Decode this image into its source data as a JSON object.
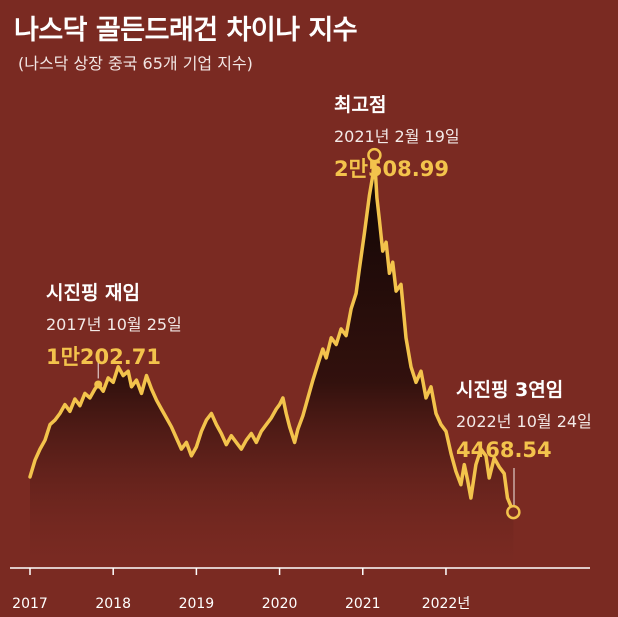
{
  "header": {
    "title": "나스닥 골든드래건 차이나 지수",
    "subtitle": "(나스닥 상장 중국 65개 기업 지수)"
  },
  "annotations": {
    "peak": {
      "heading": "최고점",
      "date": "2021년 2월 19일",
      "value": "2만508.99"
    },
    "xi_reelect": {
      "heading": "시진핑 재임",
      "date": "2017년 10월 25일",
      "value": "1만202.71"
    },
    "xi_third": {
      "heading": "시진핑 3연임",
      "date": "2022년 10월 24일",
      "value": "4468.54"
    }
  },
  "colors": {
    "background": "#7a2a22",
    "line": "#f3c34c",
    "area_top": "#120806"
  },
  "chart_data": {
    "type": "area",
    "xlabel": "",
    "ylabel": "",
    "xlim": [
      2017.0,
      2022.95
    ],
    "ylim": [
      2000,
      22000
    ],
    "x_ticks": [
      {
        "value": 2017,
        "label": "2017"
      },
      {
        "value": 2018,
        "label": "2018"
      },
      {
        "value": 2019,
        "label": "2019"
      },
      {
        "value": 2020,
        "label": "2020"
      },
      {
        "value": 2021,
        "label": "2021"
      },
      {
        "value": 2022,
        "label": "2022년"
      }
    ],
    "grid": false,
    "series": [
      {
        "points": [
          [
            2017.0,
            6050
          ],
          [
            2017.06,
            6800
          ],
          [
            2017.12,
            7300
          ],
          [
            2017.18,
            7700
          ],
          [
            2017.24,
            8400
          ],
          [
            2017.3,
            8600
          ],
          [
            2017.36,
            8900
          ],
          [
            2017.42,
            9300
          ],
          [
            2017.48,
            9000
          ],
          [
            2017.54,
            9550
          ],
          [
            2017.6,
            9250
          ],
          [
            2017.66,
            9800
          ],
          [
            2017.72,
            9600
          ],
          [
            2017.78,
            10000
          ],
          [
            2017.82,
            10202.71
          ],
          [
            2017.88,
            9900
          ],
          [
            2017.94,
            10500
          ],
          [
            2018.0,
            10300
          ],
          [
            2018.06,
            11000
          ],
          [
            2018.12,
            10600
          ],
          [
            2018.18,
            10800
          ],
          [
            2018.22,
            10100
          ],
          [
            2018.28,
            10400
          ],
          [
            2018.34,
            9800
          ],
          [
            2018.4,
            10600
          ],
          [
            2018.46,
            10000
          ],
          [
            2018.52,
            9500
          ],
          [
            2018.58,
            9100
          ],
          [
            2018.64,
            8700
          ],
          [
            2018.7,
            8300
          ],
          [
            2018.76,
            7800
          ],
          [
            2018.82,
            7300
          ],
          [
            2018.88,
            7600
          ],
          [
            2018.94,
            7000
          ],
          [
            2019.0,
            7400
          ],
          [
            2019.06,
            8100
          ],
          [
            2019.12,
            8600
          ],
          [
            2019.18,
            8900
          ],
          [
            2019.24,
            8400
          ],
          [
            2019.3,
            8000
          ],
          [
            2019.36,
            7500
          ],
          [
            2019.42,
            7900
          ],
          [
            2019.48,
            7600
          ],
          [
            2019.54,
            7300
          ],
          [
            2019.6,
            7700
          ],
          [
            2019.66,
            8000
          ],
          [
            2019.72,
            7600
          ],
          [
            2019.78,
            8100
          ],
          [
            2019.84,
            8400
          ],
          [
            2019.9,
            8700
          ],
          [
            2019.96,
            9100
          ],
          [
            2020.0,
            9300
          ],
          [
            2020.04,
            9600
          ],
          [
            2020.08,
            8900
          ],
          [
            2020.12,
            8300
          ],
          [
            2020.18,
            7600
          ],
          [
            2020.22,
            8200
          ],
          [
            2020.28,
            8800
          ],
          [
            2020.34,
            9600
          ],
          [
            2020.4,
            10400
          ],
          [
            2020.46,
            11100
          ],
          [
            2020.52,
            11800
          ],
          [
            2020.56,
            11400
          ],
          [
            2020.62,
            12300
          ],
          [
            2020.68,
            12000
          ],
          [
            2020.74,
            12700
          ],
          [
            2020.8,
            12400
          ],
          [
            2020.86,
            13600
          ],
          [
            2020.92,
            14300
          ],
          [
            2020.96,
            15400
          ],
          [
            2021.02,
            17000
          ],
          [
            2021.08,
            18700
          ],
          [
            2021.12,
            19600
          ],
          [
            2021.14,
            20508.99
          ],
          [
            2021.17,
            18600
          ],
          [
            2021.2,
            17600
          ],
          [
            2021.24,
            16200
          ],
          [
            2021.28,
            16600
          ],
          [
            2021.32,
            15200
          ],
          [
            2021.36,
            15700
          ],
          [
            2021.4,
            14400
          ],
          [
            2021.46,
            14700
          ],
          [
            2021.52,
            12300
          ],
          [
            2021.58,
            11000
          ],
          [
            2021.64,
            10300
          ],
          [
            2021.7,
            10800
          ],
          [
            2021.76,
            9600
          ],
          [
            2021.82,
            10100
          ],
          [
            2021.88,
            8900
          ],
          [
            2021.94,
            8400
          ],
          [
            2022.0,
            8100
          ],
          [
            2022.06,
            7100
          ],
          [
            2022.12,
            6300
          ],
          [
            2022.18,
            5700
          ],
          [
            2022.22,
            6600
          ],
          [
            2022.26,
            5900
          ],
          [
            2022.3,
            5100
          ],
          [
            2022.36,
            6600
          ],
          [
            2022.42,
            7300
          ],
          [
            2022.48,
            7000
          ],
          [
            2022.52,
            6000
          ],
          [
            2022.58,
            6900
          ],
          [
            2022.64,
            6500
          ],
          [
            2022.7,
            6200
          ],
          [
            2022.74,
            5100
          ],
          [
            2022.81,
            4468.54
          ]
        ]
      }
    ],
    "markers": [
      {
        "x": 2017.82,
        "y": 10202.71
      },
      {
        "x": 2021.14,
        "y": 20508.99
      },
      {
        "x": 2022.81,
        "y": 4468.54
      }
    ]
  }
}
